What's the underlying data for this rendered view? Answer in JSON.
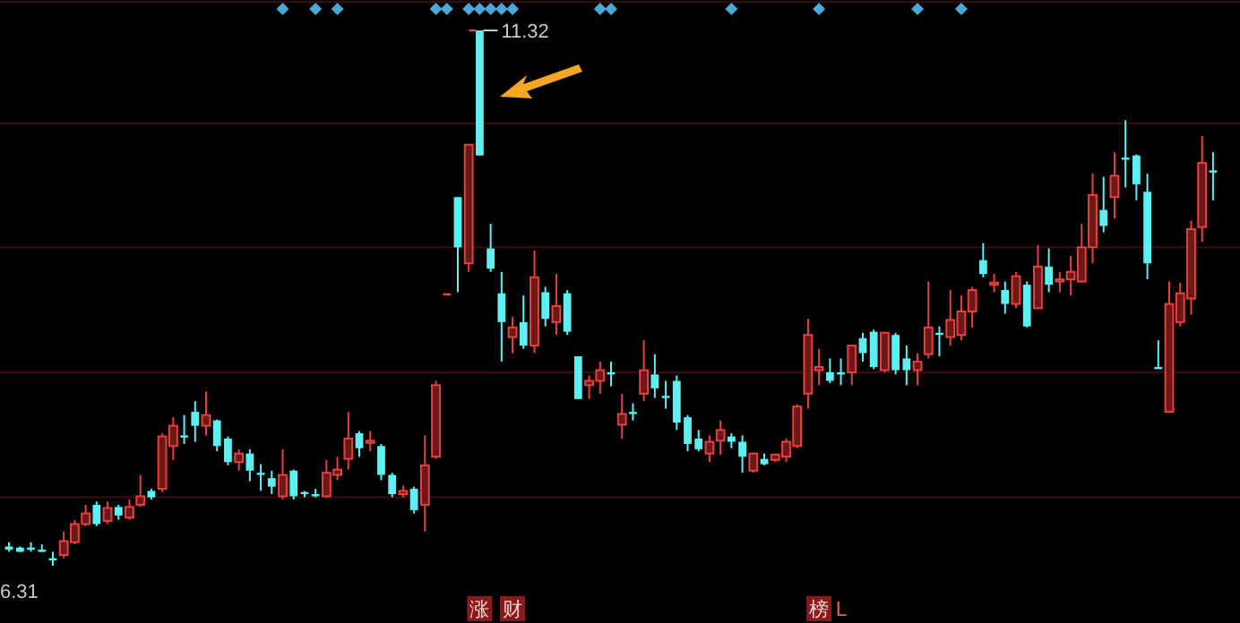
{
  "chart_data": {
    "type": "candlestick",
    "categories": [
      null,
      null,
      null,
      null,
      null,
      null,
      null,
      null,
      null,
      null,
      null,
      null,
      null,
      null,
      null,
      null,
      null,
      null,
      null,
      null,
      null,
      null,
      null,
      null,
      null,
      null,
      null,
      null,
      null,
      null,
      null,
      null,
      null,
      null,
      null,
      null,
      null,
      null,
      null,
      null,
      null,
      null,
      null,
      null,
      null,
      null,
      null,
      null,
      null,
      null,
      null,
      null,
      null,
      null,
      null,
      null,
      null,
      null,
      null,
      null,
      null,
      null,
      null,
      null,
      null,
      null,
      null,
      null,
      null,
      null,
      null,
      null,
      null,
      null,
      null,
      null,
      null,
      null,
      null,
      null,
      null,
      null,
      null,
      null,
      null,
      null,
      null,
      null,
      null,
      null,
      null,
      null,
      null,
      null,
      null,
      null,
      null,
      null,
      null,
      null,
      null,
      null,
      null,
      null,
      null,
      null,
      null,
      null,
      null,
      null,
      null
    ],
    "ohlc": [
      [
        6.49,
        6.53,
        6.44,
        6.46
      ],
      [
        6.48,
        6.49,
        6.44,
        6.44
      ],
      [
        6.48,
        6.53,
        6.44,
        6.48
      ],
      [
        6.46,
        6.51,
        6.44,
        6.46
      ],
      [
        6.38,
        6.44,
        6.31,
        6.38
      ],
      [
        6.41,
        6.63,
        6.38,
        6.54
      ],
      [
        6.53,
        6.74,
        6.51,
        6.7
      ],
      [
        6.7,
        6.88,
        6.68,
        6.8
      ],
      [
        6.88,
        6.91,
        6.68,
        6.7
      ],
      [
        6.73,
        6.91,
        6.7,
        6.85
      ],
      [
        6.86,
        6.88,
        6.74,
        6.78
      ],
      [
        6.76,
        6.93,
        6.74,
        6.86
      ],
      [
        6.88,
        7.16,
        6.86,
        6.96
      ],
      [
        7.01,
        7.03,
        6.93,
        6.95
      ],
      [
        7.03,
        7.55,
        7.0,
        7.52
      ],
      [
        7.43,
        7.7,
        7.3,
        7.62
      ],
      [
        7.53,
        7.72,
        7.45,
        7.52
      ],
      [
        7.75,
        7.85,
        7.47,
        7.62
      ],
      [
        7.62,
        7.94,
        7.53,
        7.72
      ],
      [
        7.67,
        7.68,
        7.38,
        7.43
      ],
      [
        7.5,
        7.52,
        7.25,
        7.28
      ],
      [
        7.28,
        7.4,
        7.2,
        7.36
      ],
      [
        7.36,
        7.4,
        7.1,
        7.2
      ],
      [
        7.18,
        7.26,
        7.01,
        7.16
      ],
      [
        7.13,
        7.2,
        6.98,
        7.05
      ],
      [
        6.96,
        7.4,
        6.93,
        7.16
      ],
      [
        7.2,
        7.21,
        6.93,
        6.96
      ],
      [
        7.0,
        7.01,
        6.95,
        6.98
      ],
      [
        6.98,
        7.03,
        6.95,
        6.96
      ],
      [
        6.96,
        7.3,
        6.95,
        7.18
      ],
      [
        7.16,
        7.33,
        7.11,
        7.21
      ],
      [
        7.31,
        7.75,
        7.21,
        7.5
      ],
      [
        7.55,
        7.57,
        7.33,
        7.41
      ],
      [
        7.47,
        7.57,
        7.38,
        7.48
      ],
      [
        7.43,
        7.45,
        7.11,
        7.16
      ],
      [
        7.16,
        7.18,
        6.95,
        6.98
      ],
      [
        6.98,
        7.06,
        6.95,
        7.01
      ],
      [
        7.03,
        7.05,
        6.8,
        6.83
      ],
      [
        6.88,
        7.53,
        6.63,
        7.25
      ],
      [
        7.33,
        8.04,
        7.31,
        8.0
      ],
      [
        8.86,
        8.86,
        8.86,
        8.86
      ],
      [
        9.76,
        9.76,
        8.87,
        9.29
      ],
      [
        9.14,
        10.25,
        9.06,
        10.25
      ],
      [
        11.32,
        11.32,
        10.15,
        10.15
      ],
      [
        9.28,
        9.51,
        9.06,
        9.09
      ],
      [
        8.86,
        9.06,
        8.22,
        8.59
      ],
      [
        8.45,
        8.64,
        8.3,
        8.54
      ],
      [
        8.59,
        8.84,
        8.34,
        8.37
      ],
      [
        8.37,
        9.26,
        8.3,
        9.01
      ],
      [
        8.87,
        8.92,
        8.55,
        8.62
      ],
      [
        8.59,
        9.04,
        8.47,
        8.74
      ],
      [
        8.86,
        8.89,
        8.47,
        8.5
      ],
      [
        8.27,
        8.27,
        7.87,
        7.87
      ],
      [
        8.0,
        8.09,
        7.87,
        8.04
      ],
      [
        8.04,
        8.22,
        7.92,
        8.14
      ],
      [
        8.12,
        8.22,
        7.99,
        8.1
      ],
      [
        7.63,
        7.92,
        7.5,
        7.73
      ],
      [
        7.75,
        7.83,
        7.67,
        7.73
      ],
      [
        7.92,
        8.42,
        7.85,
        8.14
      ],
      [
        8.1,
        8.29,
        7.88,
        7.97
      ],
      [
        7.9,
        8.04,
        7.78,
        7.88
      ],
      [
        8.04,
        8.09,
        7.58,
        7.65
      ],
      [
        7.7,
        7.72,
        7.38,
        7.45
      ],
      [
        7.5,
        7.58,
        7.38,
        7.4
      ],
      [
        7.36,
        7.53,
        7.28,
        7.47
      ],
      [
        7.48,
        7.67,
        7.35,
        7.58
      ],
      [
        7.52,
        7.55,
        7.41,
        7.47
      ],
      [
        7.47,
        7.53,
        7.18,
        7.33
      ],
      [
        7.2,
        7.36,
        7.18,
        7.36
      ],
      [
        7.31,
        7.36,
        7.25,
        7.26
      ],
      [
        7.3,
        7.36,
        7.28,
        7.35
      ],
      [
        7.33,
        7.5,
        7.28,
        7.47
      ],
      [
        7.43,
        7.82,
        7.41,
        7.8
      ],
      [
        7.92,
        8.62,
        7.78,
        8.47
      ],
      [
        8.14,
        8.34,
        8.0,
        8.17
      ],
      [
        8.12,
        8.25,
        8.02,
        8.04
      ],
      [
        8.12,
        8.25,
        8.0,
        8.1
      ],
      [
        8.12,
        8.37,
        8.0,
        8.37
      ],
      [
        8.44,
        8.49,
        8.22,
        8.3
      ],
      [
        8.5,
        8.52,
        8.15,
        8.17
      ],
      [
        8.14,
        8.5,
        8.12,
        8.49
      ],
      [
        8.47,
        8.49,
        8.1,
        8.14
      ],
      [
        8.25,
        8.37,
        8.0,
        8.14
      ],
      [
        8.14,
        8.3,
        8.0,
        8.22
      ],
      [
        8.29,
        8.97,
        8.25,
        8.54
      ],
      [
        8.49,
        8.55,
        8.27,
        8.47
      ],
      [
        8.45,
        8.89,
        8.37,
        8.61
      ],
      [
        8.47,
        8.84,
        8.42,
        8.69
      ],
      [
        8.69,
        8.92,
        8.54,
        8.89
      ],
      [
        9.17,
        9.33,
        9.01,
        9.04
      ],
      [
        8.94,
        9.04,
        8.87,
        8.96
      ],
      [
        8.89,
        8.97,
        8.67,
        8.76
      ],
      [
        8.76,
        9.06,
        8.72,
        9.02
      ],
      [
        8.94,
        8.97,
        8.54,
        8.55
      ],
      [
        8.72,
        9.31,
        8.72,
        9.11
      ],
      [
        9.11,
        9.28,
        8.87,
        8.94
      ],
      [
        8.97,
        9.06,
        8.87,
        8.99
      ],
      [
        8.99,
        9.21,
        8.84,
        9.06
      ],
      [
        8.97,
        9.51,
        8.96,
        9.29
      ],
      [
        9.29,
        9.98,
        9.14,
        9.78
      ],
      [
        9.64,
        9.95,
        9.43,
        9.49
      ],
      [
        9.76,
        10.18,
        9.56,
        9.96
      ],
      [
        10.13,
        10.48,
        9.85,
        10.11
      ],
      [
        10.15,
        10.16,
        9.73,
        9.88
      ],
      [
        9.81,
        9.98,
        8.99,
        9.14
      ],
      [
        8.17,
        8.42,
        8.17,
        8.17
      ],
      [
        7.75,
        8.97,
        7.75,
        8.76
      ],
      [
        8.59,
        8.96,
        8.55,
        8.86
      ],
      [
        8.81,
        9.54,
        8.66,
        9.46
      ],
      [
        9.48,
        10.33,
        9.34,
        10.08
      ],
      [
        10.01,
        10.18,
        9.73,
        9.99
      ]
    ],
    "tick_labels": false,
    "yticks": [
      {
        "value": 6.95,
        "label": null
      },
      {
        "value": 8.12,
        "label": null
      },
      {
        "value": 9.29,
        "label": null
      },
      {
        "value": 10.45,
        "label": null
      }
    ],
    "grid": "y",
    "annotations": [
      "11.32",
      "6.31",
      "涨",
      "财",
      "榜",
      "L"
    ]
  }
}
